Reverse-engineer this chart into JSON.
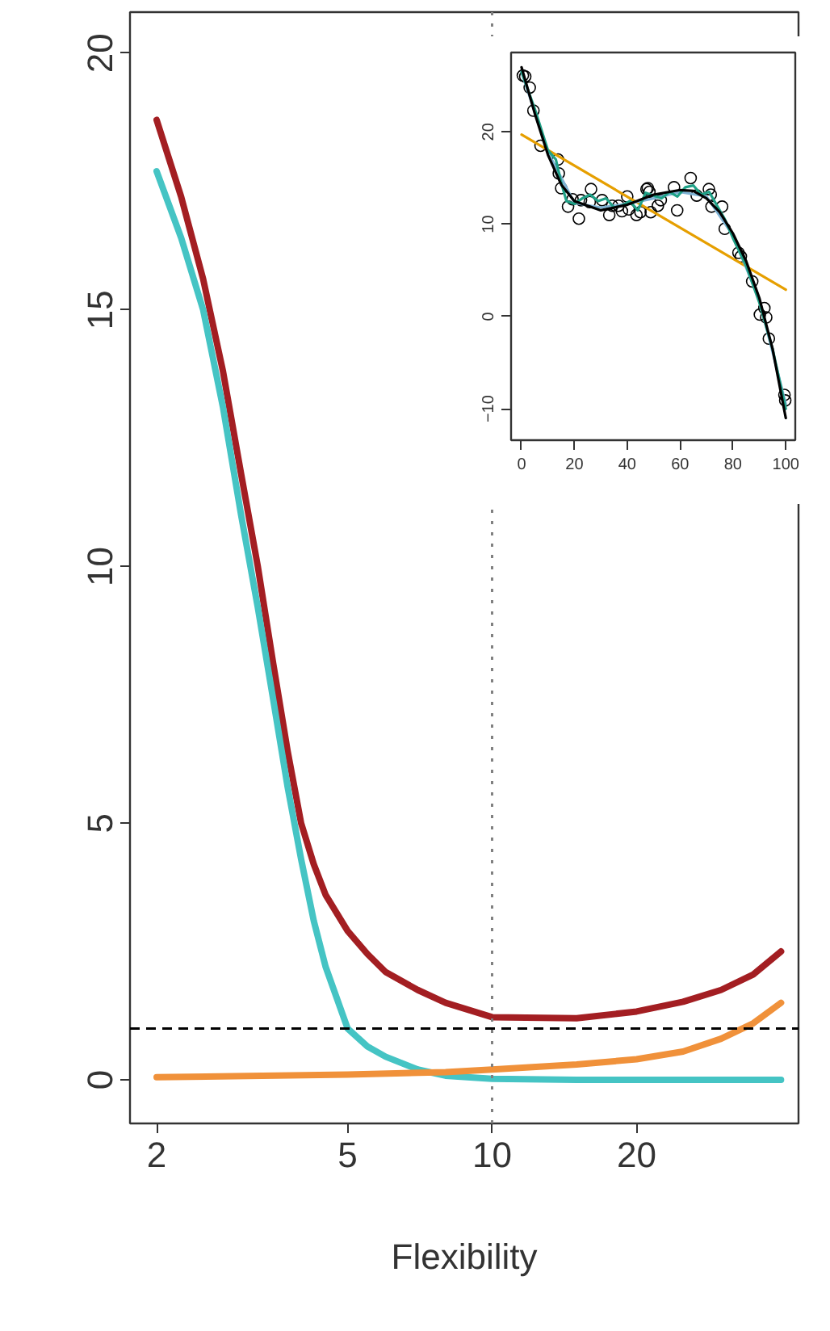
{
  "chart_data": [
    {
      "type": "line",
      "xlabel": "Flexibility",
      "log": "x",
      "grid": false,
      "marker": "none",
      "line_style": "solid",
      "xlim": [
        1.76,
        43.5
      ],
      "ylim": [
        -0.85,
        20.8
      ],
      "xticks": [
        2,
        5,
        10,
        20
      ],
      "yticks": [
        0,
        5,
        10,
        15,
        20
      ],
      "series": [
        {
          "color": "#a31e22",
          "x": [
            2,
            2.25,
            2.5,
            2.75,
            3,
            3.25,
            3.5,
            3.75,
            4,
            4.25,
            4.5,
            5,
            5.5,
            6,
            7,
            8,
            10,
            15,
            20,
            25,
            30,
            35,
            40
          ],
          "values": [
            18.7,
            17.2,
            15.6,
            13.8,
            11.8,
            10,
            8.1,
            6.4,
            5.0,
            4.2,
            3.6,
            2.9,
            2.45,
            2.1,
            1.75,
            1.5,
            1.22,
            1.2,
            1.33,
            1.52,
            1.75,
            2.05,
            2.5
          ]
        },
        {
          "color": "#45c4c4",
          "x": [
            2,
            2.25,
            2.5,
            2.75,
            3,
            3.25,
            3.5,
            3.75,
            4,
            4.25,
            4.5,
            5,
            5.5,
            6,
            7,
            8,
            10,
            15,
            20,
            30,
            40
          ],
          "values": [
            17.7,
            16.4,
            15,
            13.1,
            11,
            9.2,
            7.4,
            5.7,
            4.3,
            3.1,
            2.2,
            1.0,
            0.65,
            0.45,
            0.2,
            0.08,
            0.02,
            0,
            0,
            0,
            0
          ]
        },
        {
          "color": "#f0913a",
          "x": [
            2,
            5,
            8,
            10,
            15,
            20,
            25,
            30,
            35,
            40
          ],
          "values": [
            0.05,
            0.1,
            0.15,
            0.2,
            0.3,
            0.4,
            0.55,
            0.8,
            1.1,
            1.5
          ]
        }
      ],
      "ref_lines": [
        {
          "axis": "x",
          "value": 10,
          "line_style": "dotted",
          "color": "#808080"
        },
        {
          "axis": "y",
          "value": 1,
          "line_style": "dashed",
          "color": "#000000"
        }
      ]
    },
    {
      "type": "scatter",
      "grid": false,
      "marker": "none",
      "xlim": [
        -3.96,
        103.6
      ],
      "ylim": [
        -13.4,
        28.6
      ],
      "xticks": [
        0,
        20,
        40,
        60,
        80,
        100
      ],
      "yticks": [
        -10,
        0,
        10,
        20
      ],
      "series": [
        {
          "type": "scatter",
          "marker": "circle",
          "color": "#000000",
          "x": [
            0.5,
            1.4,
            3.1,
            4.5,
            7.2,
            13.8,
            14.1,
            15,
            17.6,
            19.3,
            21.7,
            22.5,
            26.3,
            25.8,
            30.5,
            33.2,
            34.3,
            36.7,
            38,
            40,
            40.6,
            43.5,
            45,
            47.3,
            47.8,
            48.4,
            48.9,
            51.6,
            52.7,
            57.7,
            58.9,
            64,
            66.3,
            70.9,
            71.6,
            71.9,
            75.9,
            76.9,
            82.1,
            83,
            87.3,
            90.2,
            91.9,
            92.6,
            93.6,
            99.5,
            99.8
          ],
          "values": [
            26.1,
            26.0,
            24.8,
            22.3,
            18.5,
            17.0,
            15.5,
            13.9,
            11.9,
            12.7,
            10.6,
            12.6,
            13.8,
            12.4,
            12.6,
            11.0,
            12.0,
            12.0,
            11.4,
            13,
            11.6,
            11.0,
            11.3,
            13.8,
            13.9,
            13.5,
            11.3,
            12.0,
            12.6,
            14.0,
            11.5,
            15.0,
            13.1,
            13.8,
            13.2,
            11.9,
            11.9,
            9.5,
            6.9,
            6.5,
            3.8,
            0.2,
            0.9,
            -0.1,
            -2.4,
            -8.5,
            -9.1
          ]
        },
        {
          "type": "line",
          "color": "#e69f00",
          "x": [
            0,
            100
          ],
          "values": [
            19.7,
            2.9
          ]
        },
        {
          "type": "line",
          "color": "#7fb3d5",
          "x": [
            0,
            10,
            20,
            30,
            40,
            50,
            60,
            70,
            80,
            90,
            100
          ],
          "values": [
            26.5,
            17.8,
            12.3,
            11.8,
            12.2,
            12.8,
            13.5,
            13,
            8.8,
            1.8,
            -9.5
          ]
        },
        {
          "type": "line",
          "color": "#1fa187",
          "x": [
            0,
            5,
            10,
            13,
            15,
            17,
            20,
            23,
            26,
            29,
            32,
            35,
            38,
            41,
            44,
            47,
            50,
            53,
            56,
            59,
            62,
            65,
            68,
            71,
            74,
            77,
            80,
            85,
            90,
            95,
            100
          ],
          "values": [
            26.5,
            22.5,
            18,
            17,
            14.5,
            12.5,
            12.2,
            12.8,
            13.2,
            12.5,
            12.8,
            11.8,
            12,
            12.5,
            11.5,
            13.4,
            13.1,
            12.8,
            13.5,
            13,
            14,
            14.2,
            13.2,
            13.5,
            12,
            10.5,
            8.5,
            5.5,
            1.5,
            -3.5,
            -10
          ]
        },
        {
          "type": "line",
          "color": "#000000",
          "x": [
            0,
            5,
            10,
            15,
            20,
            30,
            40,
            50,
            60,
            65,
            70,
            75,
            80,
            85,
            90,
            95,
            100
          ],
          "values": [
            27,
            22,
            17.5,
            14.3,
            12.5,
            11.5,
            12.1,
            13.2,
            13.7,
            13.6,
            12.8,
            11.3,
            9,
            6,
            2,
            -3.5,
            -11
          ]
        }
      ]
    }
  ]
}
